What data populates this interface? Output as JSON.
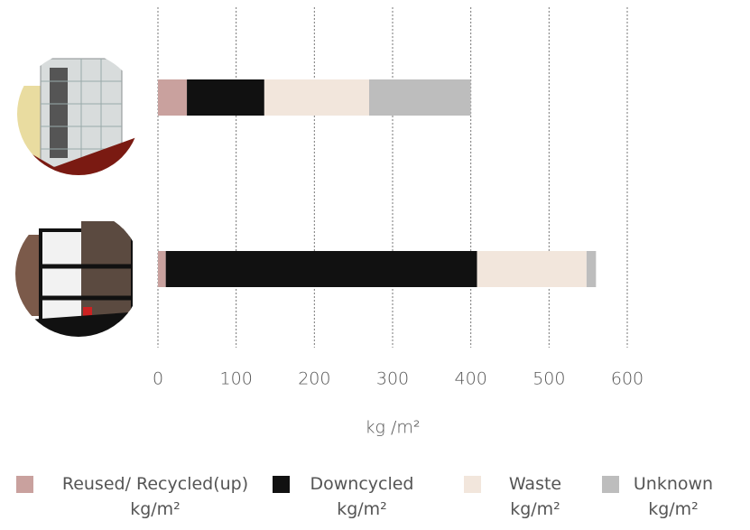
{
  "chart_data": {
    "type": "stacked-bar-horizontal",
    "categories": [
      null,
      null
    ],
    "series": [
      {
        "name": "Reused/ Recycled(up) kg/m²",
        "color": "#c9a19e",
        "values": [
          37,
          10
        ]
      },
      {
        "name": "Downcycled kg/m²",
        "color": "#111111",
        "values": [
          99,
          398
        ]
      },
      {
        "name": "Waste kg/m²",
        "color": "#f2e6dc",
        "values": [
          134,
          140
        ]
      },
      {
        "name": "Unknown kg/m²",
        "color": "#bdbdbd",
        "values": [
          130,
          12
        ]
      }
    ],
    "x_label": "kg /m²",
    "xlim": [
      0,
      600
    ],
    "xticks": [
      0,
      100,
      200,
      300,
      400,
      500,
      600
    ],
    "grid": true,
    "legend": "bottom"
  }
}
